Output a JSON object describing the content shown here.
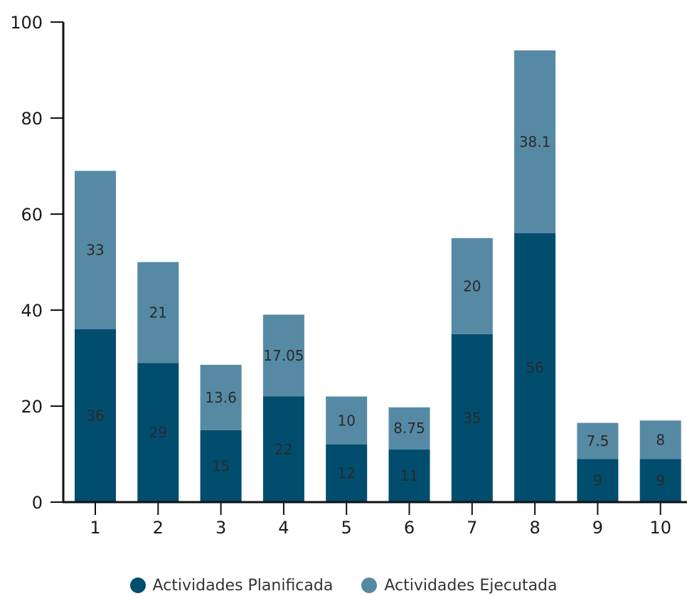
{
  "chart_data": {
    "type": "bar",
    "stacked": true,
    "categories": [
      "1",
      "2",
      "3",
      "4",
      "5",
      "6",
      "7",
      "8",
      "9",
      "10"
    ],
    "series": [
      {
        "name": "Actividades Planificada",
        "values": [
          36,
          29,
          15,
          22,
          12,
          11,
          35,
          56,
          9,
          9
        ],
        "labels": [
          "36",
          "29",
          "15",
          "22",
          "12",
          "11",
          "35",
          "56",
          "9",
          "9"
        ],
        "color": "#014d6e"
      },
      {
        "name": "Actividades Ejecutada",
        "values": [
          33,
          21,
          13.6,
          17.05,
          10,
          8.75,
          20,
          38.1,
          7.5,
          8
        ],
        "labels": [
          "33",
          "21",
          "13.6",
          "17.05",
          "10",
          "8.75",
          "20",
          "38.1",
          "7.5",
          "8"
        ],
        "color": "#5689a4"
      }
    ],
    "ylim": [
      0,
      100
    ],
    "yticks": [
      0,
      20,
      40,
      60,
      80,
      100
    ],
    "ytick_labels": [
      "0",
      "20",
      "40",
      "60",
      "80",
      "100"
    ],
    "grid": false,
    "legend_position": "bottom"
  }
}
